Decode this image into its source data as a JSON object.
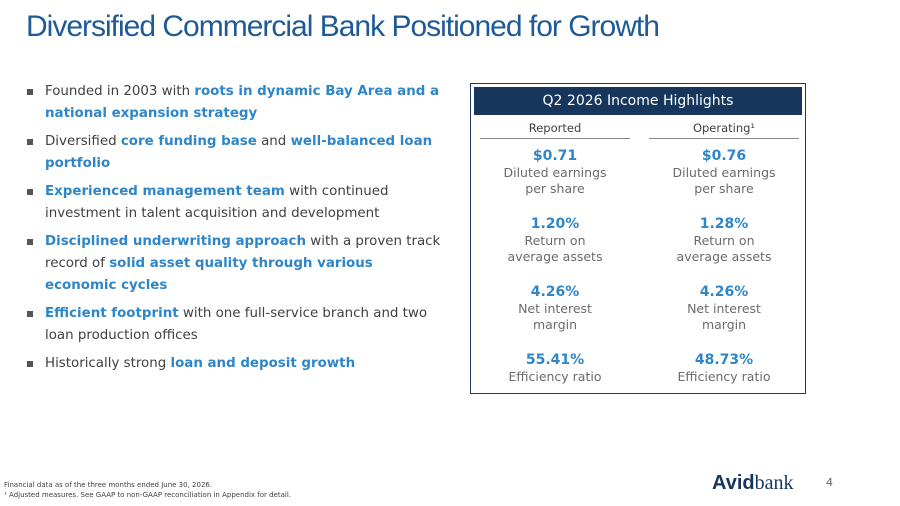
{
  "title": "Diversified Commercial Bank Positioned for Growth",
  "bullets": [
    {
      "segments": [
        {
          "text": "Founded in 2003 with "
        },
        {
          "text": "roots in dynamic Bay Area and a national expansion strategy",
          "accent": true
        }
      ]
    },
    {
      "segments": [
        {
          "text": "Diversified "
        },
        {
          "text": "core funding base",
          "accent": true
        },
        {
          "text": " and "
        },
        {
          "text": "well-balanced loan portfolio",
          "accent": true
        }
      ]
    },
    {
      "segments": [
        {
          "text": "Experienced management team",
          "accent": true
        },
        {
          "text": " with continued investment in talent acquisition and development"
        }
      ]
    },
    {
      "segments": [
        {
          "text": "Disciplined underwriting approach",
          "accent": true
        },
        {
          "text": " with a proven track record of "
        },
        {
          "text": "solid asset quality through various economic cycles",
          "accent": true
        }
      ]
    },
    {
      "segments": [
        {
          "text": "Efficient footprint",
          "accent": true
        },
        {
          "text": " with one full-service branch and two loan production offices"
        }
      ]
    },
    {
      "segments": [
        {
          "text": "Historically strong "
        },
        {
          "text": "loan and deposit growth",
          "accent": true
        }
      ]
    }
  ],
  "panel": {
    "title": "Q2 2026 Income Highlights",
    "columns": [
      {
        "header": "Reported",
        "metrics": [
          {
            "value": "$0.71",
            "label": "Diluted earnings per share"
          },
          {
            "value": "1.20%",
            "label": "Return on average assets"
          },
          {
            "value": "4.26%",
            "label": "Net interest margin"
          },
          {
            "value": "55.41%",
            "label": "Efficiency ratio"
          }
        ]
      },
      {
        "header": "Operating¹",
        "metrics": [
          {
            "value": "$0.76",
            "label": "Diluted earnings per share"
          },
          {
            "value": "1.28%",
            "label": "Return on average assets"
          },
          {
            "value": "4.26%",
            "label": "Net interest margin"
          },
          {
            "value": "48.73%",
            "label": "Efficiency ratio"
          }
        ]
      }
    ]
  },
  "footnotes": [
    "Financial data as of the three months ended June 30, 2026.",
    "¹ Adjusted measures. See GAAP to non-GAAP reconciliation in Appendix for detail."
  ],
  "logo": [
    "Avid",
    "bank"
  ],
  "page_number": "4"
}
